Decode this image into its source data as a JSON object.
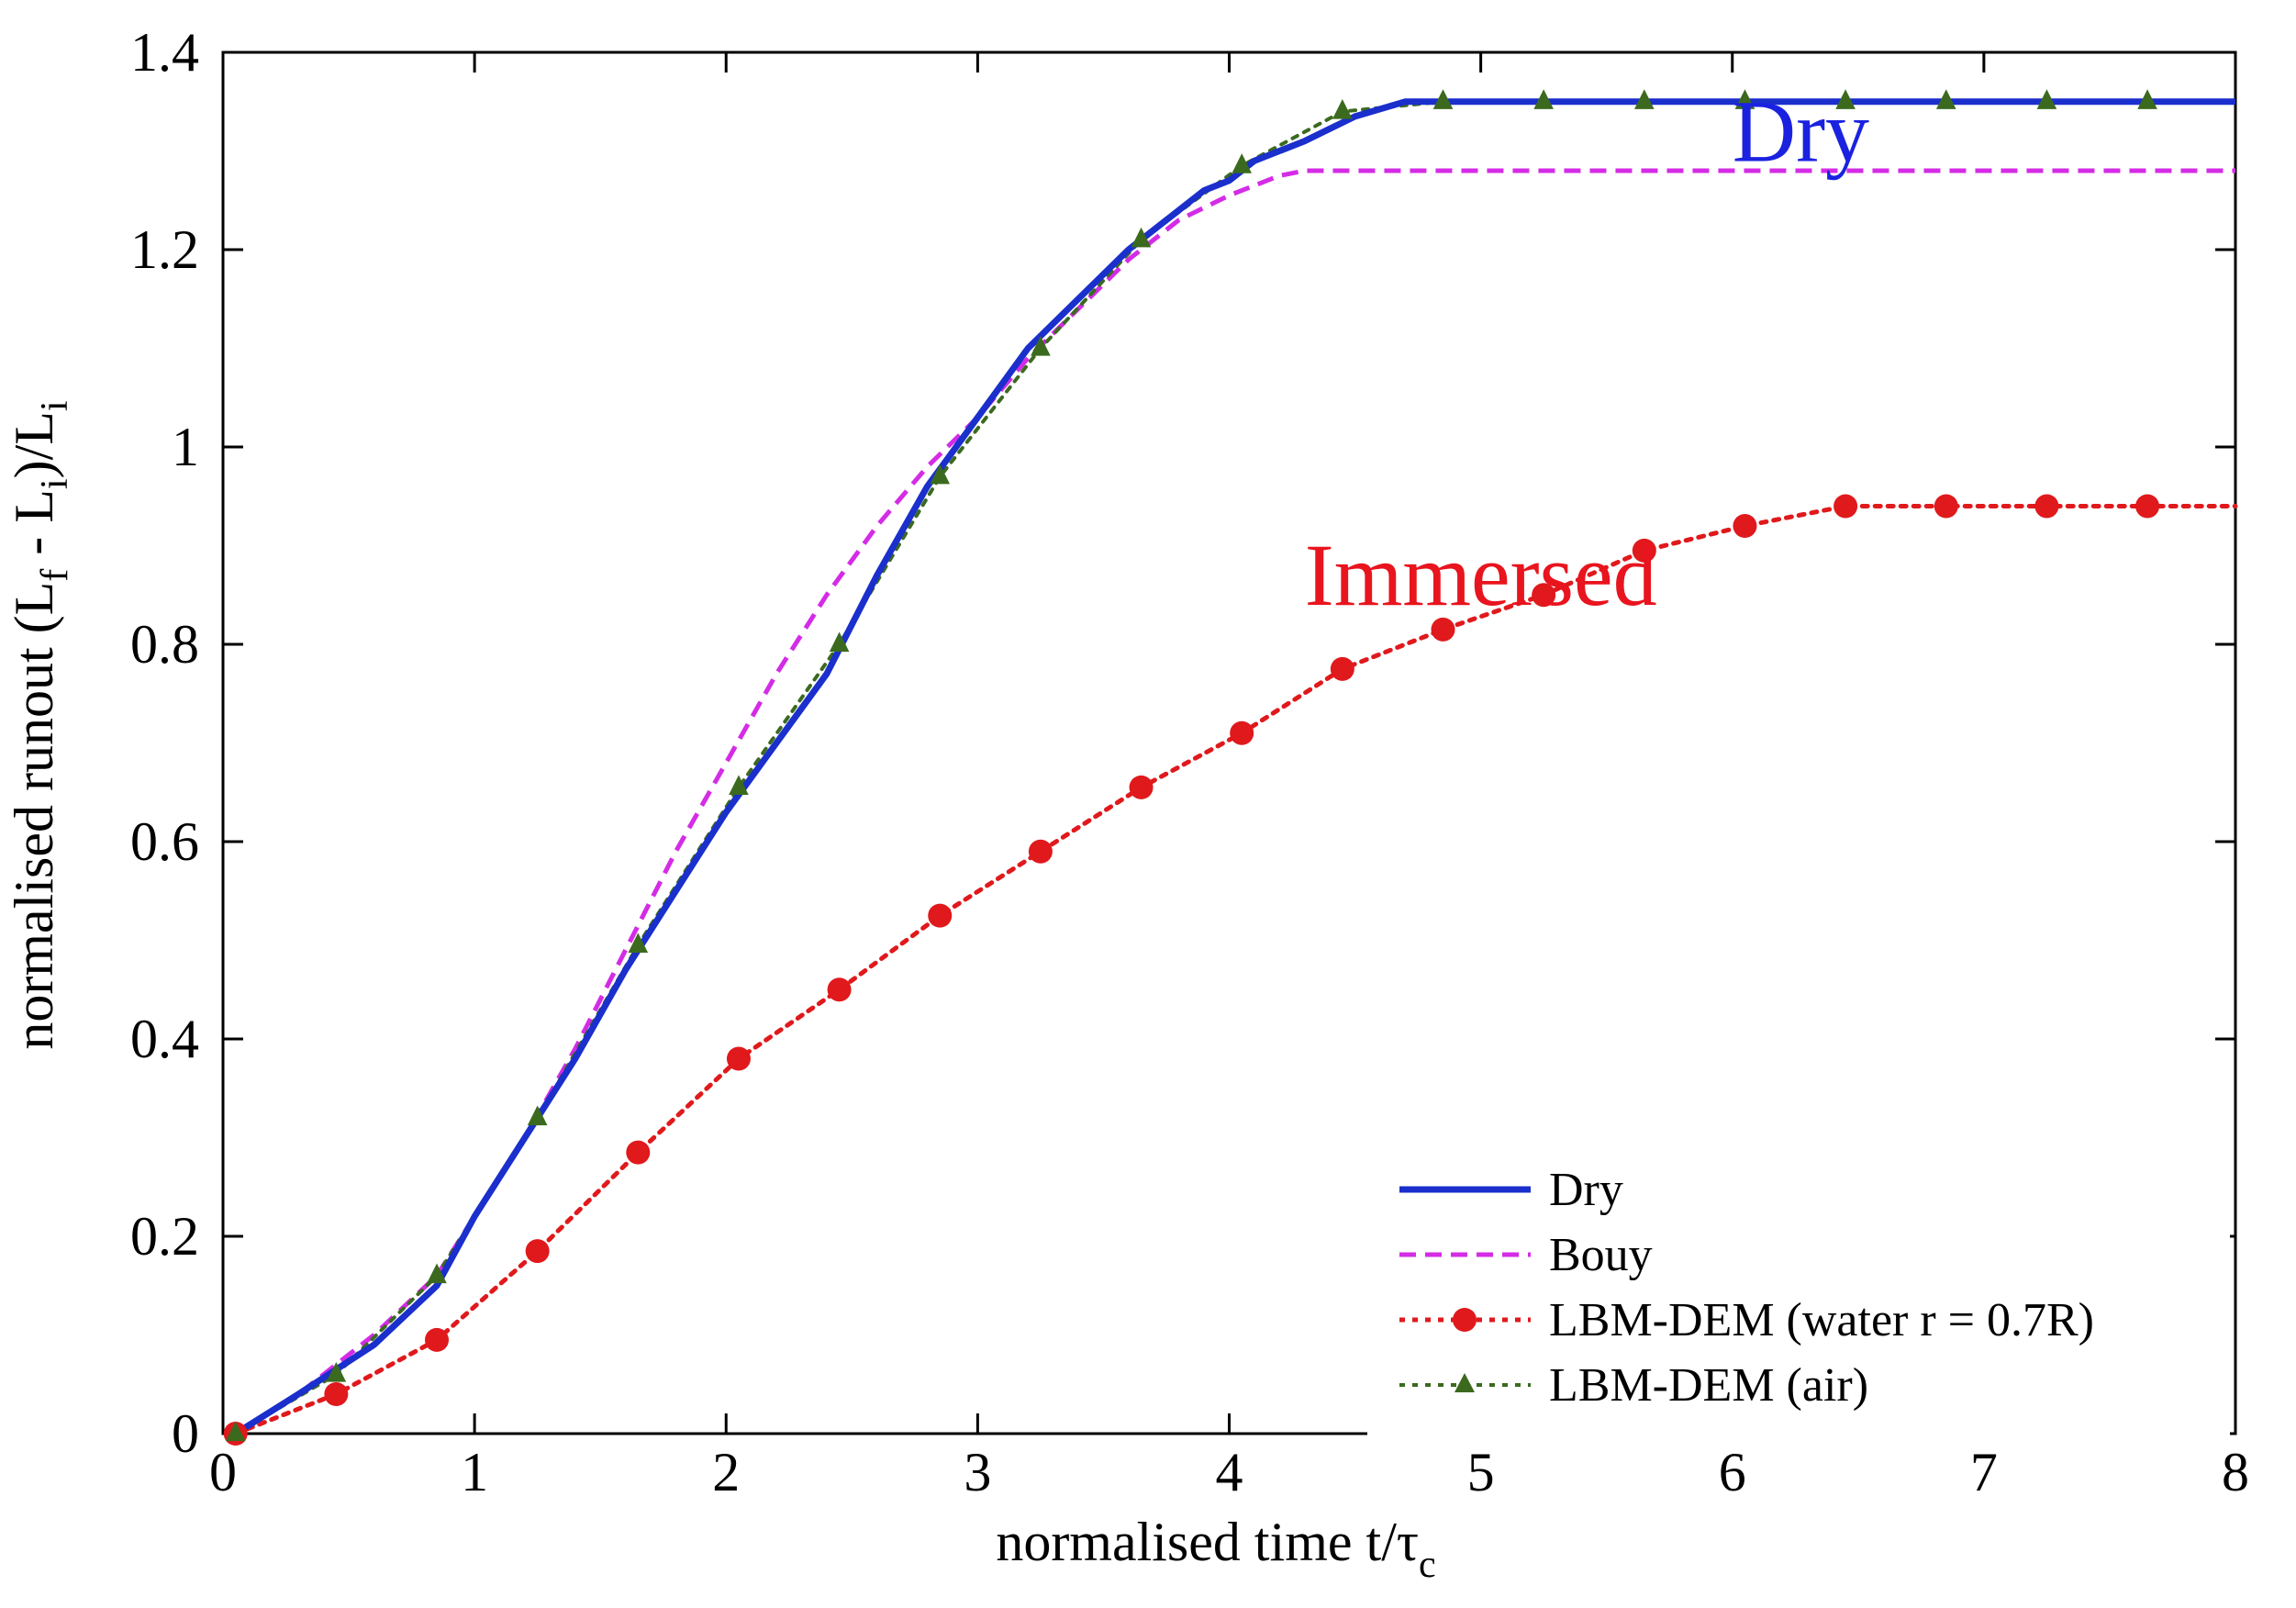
{
  "chart_data": {
    "type": "line",
    "title": "",
    "xlabel": {
      "main": "normalised time t/τ",
      "sub": "c"
    },
    "ylabel": {
      "prefix": "normalised runout (L",
      "sub1": "f",
      "mid": " - L",
      "sub2": "i",
      "mid2": ")/L",
      "sub3": "i"
    },
    "xlim": [
      0,
      8
    ],
    "ylim": [
      0,
      1.4
    ],
    "xticks": [
      0,
      1,
      2,
      3,
      4,
      5,
      6,
      7,
      8
    ],
    "xtick_labels": [
      "0",
      "1",
      "2",
      "3",
      "4",
      "5",
      "6",
      "7",
      "8"
    ],
    "yticks": [
      0,
      0.2,
      0.4,
      0.6,
      0.8,
      1.0,
      1.2,
      1.4
    ],
    "ytick_labels": [
      "0",
      "0.2",
      "0.4",
      "0.6",
      "0.8",
      "1",
      "1.2",
      "1.4"
    ],
    "grid": false,
    "legend_position": "bottom-right",
    "series": [
      {
        "name": "Dry",
        "color": "#1a2fcc",
        "style": "solid",
        "marker": "none",
        "x": [
          0.05,
          0.3,
          0.6,
          0.85,
          1.0,
          1.2,
          1.4,
          1.6,
          1.8,
          2.0,
          2.2,
          2.4,
          2.6,
          2.8,
          3.0,
          3.2,
          3.4,
          3.6,
          3.8,
          3.9,
          4.0,
          4.1,
          4.3,
          4.5,
          4.7,
          5.0,
          6.0,
          7.0,
          8.0
        ],
        "y": [
          0.0,
          0.04,
          0.09,
          0.15,
          0.22,
          0.3,
          0.38,
          0.47,
          0.55,
          0.63,
          0.7,
          0.77,
          0.87,
          0.96,
          1.03,
          1.1,
          1.15,
          1.2,
          1.24,
          1.26,
          1.27,
          1.29,
          1.31,
          1.335,
          1.35,
          1.35,
          1.35,
          1.35,
          1.35
        ]
      },
      {
        "name": "Bouy",
        "color": "#d42ce6",
        "style": "dashed",
        "marker": "none",
        "x": [
          0.05,
          0.3,
          0.6,
          0.85,
          1.0,
          1.2,
          1.4,
          1.6,
          1.8,
          2.0,
          2.2,
          2.4,
          2.6,
          2.8,
          3.0,
          3.2,
          3.4,
          3.6,
          3.8,
          4.0,
          4.2,
          4.3,
          5.0,
          6.0,
          7.0,
          8.0
        ],
        "y": [
          0.0,
          0.04,
          0.1,
          0.16,
          0.22,
          0.3,
          0.39,
          0.49,
          0.59,
          0.68,
          0.77,
          0.85,
          0.92,
          0.98,
          1.03,
          1.09,
          1.14,
          1.19,
          1.23,
          1.255,
          1.275,
          1.28,
          1.28,
          1.28,
          1.28,
          1.28
        ]
      },
      {
        "name": "LBM-DEM (water r = 0.7R)",
        "color": "#e0191c",
        "style": "dotted",
        "marker": "circle",
        "x": [
          0.05,
          0.45,
          0.85,
          1.25,
          1.65,
          2.05,
          2.45,
          2.85,
          3.25,
          3.65,
          4.05,
          4.45,
          4.85,
          5.25,
          5.65,
          6.05,
          6.45,
          6.85,
          7.25,
          7.65,
          8.0
        ],
        "y": [
          0.0,
          0.04,
          0.095,
          0.185,
          0.285,
          0.38,
          0.45,
          0.525,
          0.59,
          0.655,
          0.71,
          0.775,
          0.815,
          0.85,
          0.895,
          0.92,
          0.94,
          0.94,
          0.94,
          0.94,
          0.94
        ]
      },
      {
        "name": "LBM-DEM (air)",
        "color": "#3b6a1e",
        "style": "dotted",
        "marker": "triangle",
        "x": [
          0.05,
          0.45,
          0.85,
          1.25,
          1.65,
          2.05,
          2.45,
          2.85,
          3.25,
          3.65,
          4.05,
          4.45,
          4.85,
          5.25,
          5.65,
          6.05,
          6.45,
          6.85,
          7.25,
          7.65
        ],
        "y": [
          0.0,
          0.06,
          0.16,
          0.32,
          0.495,
          0.655,
          0.8,
          0.97,
          1.1,
          1.21,
          1.285,
          1.34,
          1.35,
          1.35,
          1.35,
          1.35,
          1.35,
          1.35,
          1.35,
          1.35
        ]
      }
    ],
    "annotations": [
      {
        "text": "Dry",
        "color": "#1a22e0",
        "x": 6.0,
        "y": 1.29
      },
      {
        "text": "Immersed",
        "color": "#e8141e",
        "x": 4.3,
        "y": 0.84
      }
    ]
  }
}
